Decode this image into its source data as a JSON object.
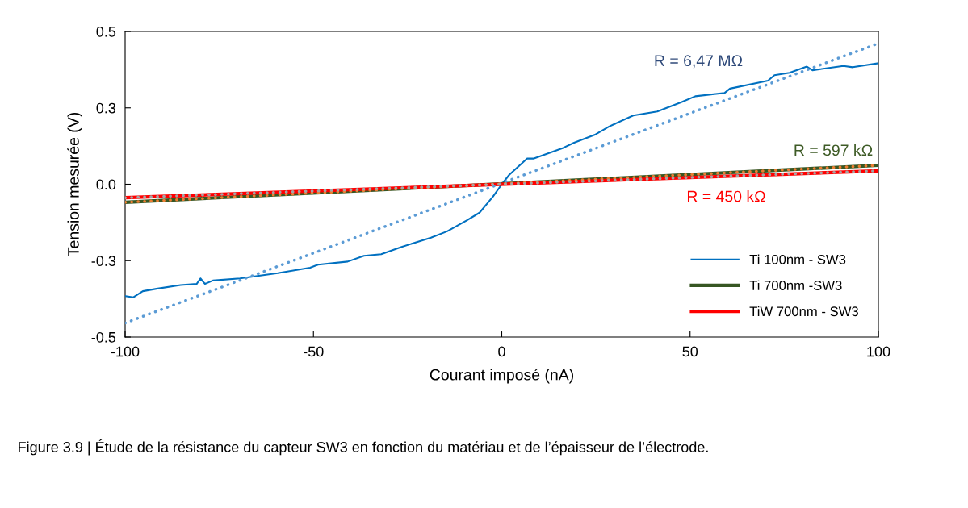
{
  "chart_data": {
    "type": "line",
    "xlabel": "Courant imposé (nA)",
    "ylabel": "Tension mesurée (V)",
    "xlim": [
      -100,
      100
    ],
    "xticks": [
      -100,
      -50,
      0,
      50,
      100
    ],
    "ylim": [
      -0.5,
      0.5
    ],
    "yticks": [
      -0.5,
      {
        "value": -0.25,
        "label": "-0.3"
      },
      {
        "value": 0,
        "label": "0.0"
      },
      {
        "value": 0.25,
        "label": "0.3"
      },
      0.5
    ],
    "grid": false,
    "legend": "bottom right",
    "marker": "none",
    "line_style": "solid",
    "series": [
      {
        "name": "Ti 100nm - SW3",
        "color": "#0070c0",
        "x": [
          -99.9,
          -97.8,
          -95.3,
          -91.7,
          -85.3,
          -81.0,
          -80.0,
          -78.8,
          -76.7,
          -69.5,
          -59.5,
          -50.9,
          -48.8,
          -40.9,
          -36.6,
          -32.0,
          -26.6,
          -18.8,
          -14.5,
          -9.4,
          -5.9,
          -2.3,
          0,
          2.0,
          6.7,
          8.4,
          16.3,
          19.2,
          24.9,
          28.5,
          34.9,
          41.3,
          47.8,
          51.4,
          59.2,
          60.6,
          70.7,
          72.4,
          76.4,
          81.0,
          82.5,
          90.7,
          93.2,
          100
        ],
        "values": [
          -0.366,
          -0.37,
          -0.35,
          -0.342,
          -0.33,
          -0.326,
          -0.308,
          -0.326,
          -0.315,
          -0.308,
          -0.291,
          -0.273,
          -0.263,
          -0.253,
          -0.234,
          -0.229,
          -0.205,
          -0.175,
          -0.154,
          -0.119,
          -0.093,
          -0.04,
          0,
          0.031,
          0.084,
          0.084,
          0.119,
          0.136,
          0.163,
          0.189,
          0.225,
          0.238,
          0.269,
          0.288,
          0.299,
          0.313,
          0.339,
          0.357,
          0.365,
          0.385,
          0.373,
          0.387,
          0.383,
          0.396
        ]
      },
      {
        "name": "Ti 700nm -SW3",
        "color": "#375623",
        "x": [
          -100,
          100
        ],
        "values": [
          -0.059,
          0.062
        ]
      },
      {
        "name": "TiW 700nm - SW3",
        "color": "#ff0000",
        "x": [
          -100,
          100
        ],
        "values": [
          -0.044,
          0.044
        ]
      },
      {
        "color": "#5b9bd5",
        "line_style": "dotted",
        "x": [
          -100,
          100
        ],
        "values": [
          -0.454,
          0.461
        ]
      },
      {
        "color": "#ed7d31",
        "line_style": "dotted",
        "x": [
          -100,
          100
        ],
        "values": [
          -0.059,
          0.062
        ]
      },
      {
        "color": "#a5a5a5",
        "line_style": "dotted",
        "x": [
          -100,
          100
        ],
        "values": [
          -0.044,
          0.044
        ]
      }
    ],
    "annotations": [
      "R = 6,47 MΩ",
      "R = 597 kΩ",
      "R = 450 kΩ",
      "Figure 3.9 | Étude de la résistance du capteur SW3 en fonction du matériau et de l’épaisseur de l’électrode."
    ]
  }
}
